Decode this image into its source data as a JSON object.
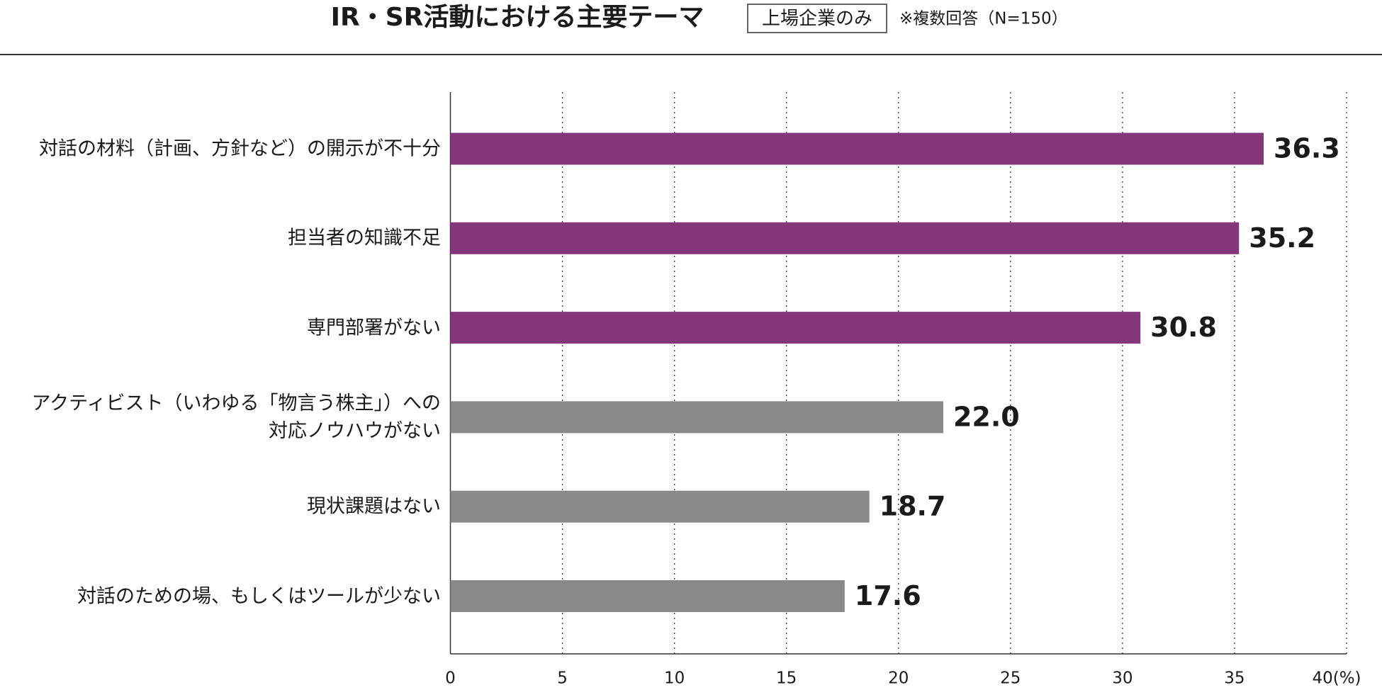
{
  "chart_data": {
    "type": "bar",
    "orientation": "horizontal",
    "title": "IR・SR活動における主要テーマ",
    "subtitle": "上場企業のみ",
    "note": "※複数回答（N=150）",
    "categories": [
      "対話の材料（計画、方針など）の開示が不十分",
      "担当者の知識不足",
      "専門部署がない",
      "アクティビスト（いわゆる「物言う株主」）への\n対応ノウハウがない",
      "現状課題はない",
      "対話のための場、もしくはツールが少ない"
    ],
    "values": [
      36.3,
      35.2,
      30.8,
      22.0,
      18.7,
      17.6
    ],
    "value_labels": [
      "36.3",
      "35.2",
      "30.8",
      "22.0",
      "18.7",
      "17.6"
    ],
    "colors": [
      "#84367a",
      "#84367a",
      "#84367a",
      "#898989",
      "#898989",
      "#898989"
    ],
    "xlim": [
      0,
      40
    ],
    "xticks": [
      0,
      5,
      10,
      15,
      20,
      25,
      30,
      35,
      {
        "value": 40,
        "label": "40(%)"
      }
    ],
    "grid": true
  }
}
